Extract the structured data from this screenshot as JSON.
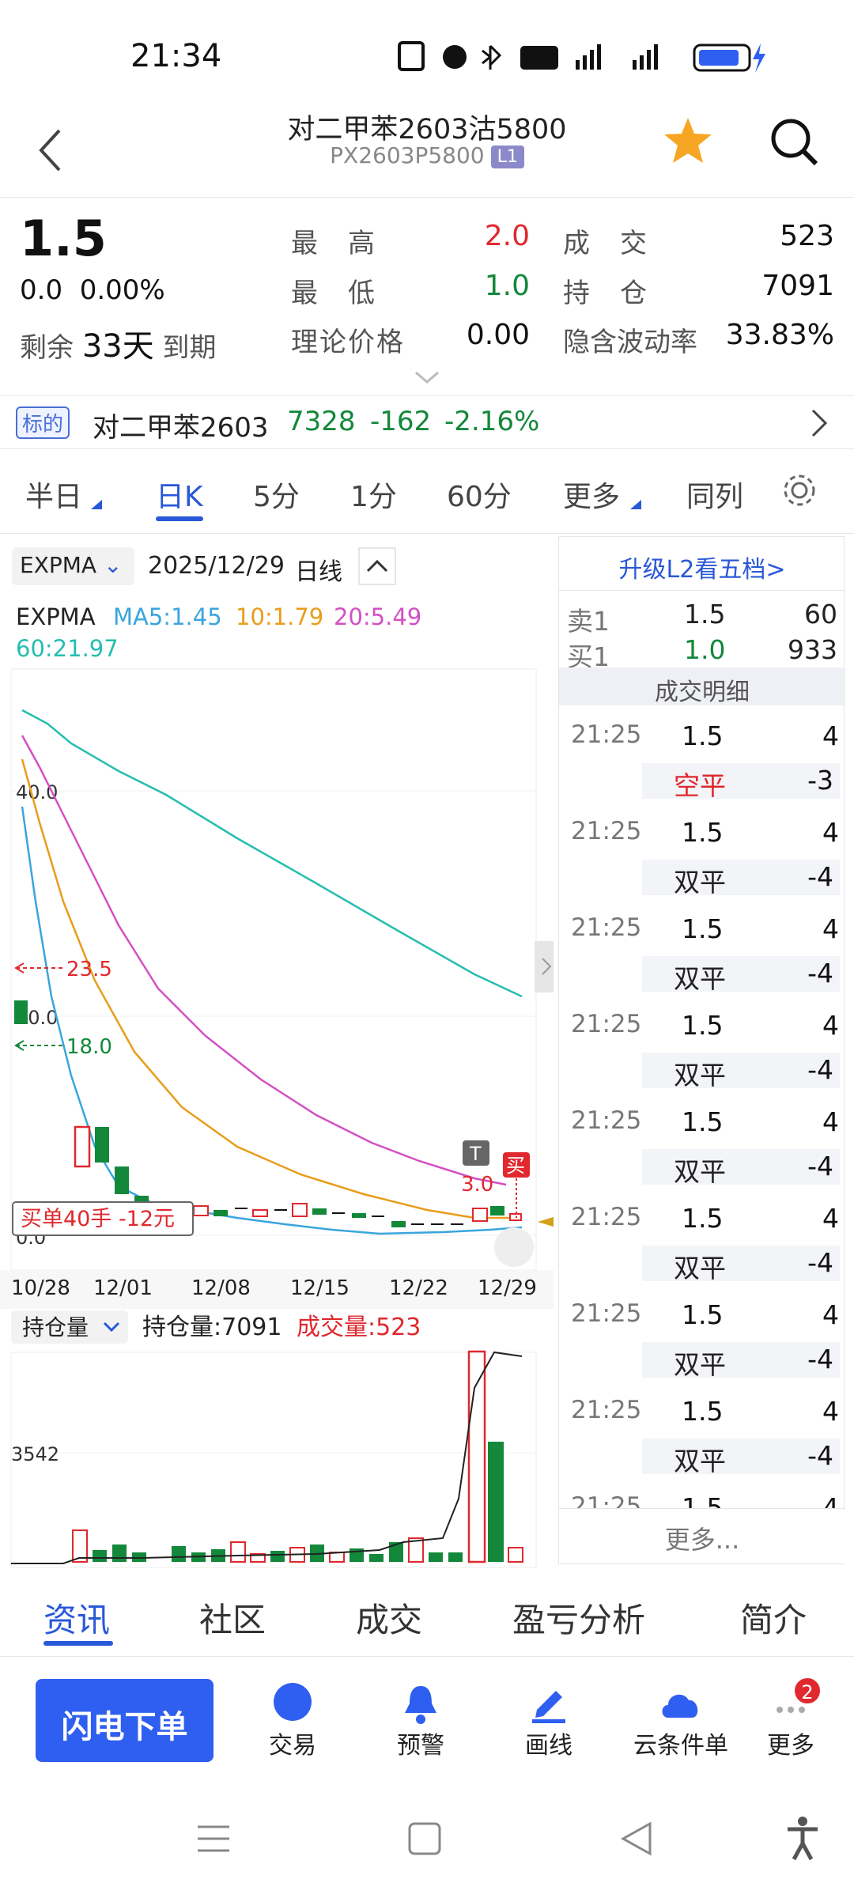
{
  "status": {
    "time": "21:34"
  },
  "nav": {
    "title": "对二甲苯2603沽5800",
    "code": "PX2603P5800",
    "badge": "L1"
  },
  "quote": {
    "price": "1.5",
    "change": "0.0",
    "change_pct": "0.00%",
    "remaining_prefix": "剩余",
    "remaining_days": "33天",
    "remaining_suffix": "到期",
    "high_label": "最　高",
    "high": "2.0",
    "low_label": "最　低",
    "low": "1.0",
    "theo_label": "理论价格",
    "theo": "0.00",
    "volume_label": "成　交",
    "volume": "523",
    "oi_label": "持　仓",
    "oi": "7091",
    "iv_label": "隐含波动率",
    "iv": "33.83%"
  },
  "underlying": {
    "tag": "标的",
    "name": "对二甲苯2603",
    "price": "7328",
    "change": "-162",
    "change_pct": "-2.16%"
  },
  "period_tabs": [
    "半日",
    "日K",
    "5分",
    "1分",
    "60分",
    "更多",
    "同列"
  ],
  "chart": {
    "indicator": "EXPMA",
    "date": "2025/12/29",
    "period": "日线",
    "ma_label": "EXPMA",
    "ma5": "MA5:1.45",
    "ma10": "10:1.79",
    "ma20": "20:5.49",
    "ma60": "60:21.97",
    "y_labels": [
      "40.0",
      "20.0",
      "0.0"
    ],
    "marker_high": "23.5",
    "marker_low": "18.0",
    "t_label": "T",
    "t_value": "3.0",
    "buy_label": "买",
    "order_note": "买单40手 -12元",
    "x_labels": [
      "10/28",
      "12/01",
      "12/08",
      "12/15",
      "12/22",
      "12/29"
    ],
    "colors": {
      "ma5": "#3aa5dd",
      "ma10": "#e89d1b",
      "ma20": "#d44fc3",
      "ma60": "#26bdb0"
    }
  },
  "vol": {
    "selector": "持仓量",
    "oi_text": "持仓量:7091",
    "vol_text": "成交量:523",
    "y_label": "3542"
  },
  "book": {
    "upgrade": "升级L2看五档>",
    "sell_label": "卖1",
    "sell_price": "1.5",
    "sell_qty": "60",
    "buy_label": "买1",
    "buy_price": "1.0",
    "buy_qty": "933",
    "detail_title": "成交明细",
    "more": "更多..."
  },
  "trades": [
    {
      "time": "21:25",
      "price": "1.5",
      "qty": "4",
      "kind": "空平",
      "delta": "-3"
    },
    {
      "time": "21:25",
      "price": "1.5",
      "qty": "4",
      "kind": "双平",
      "delta": "-4"
    },
    {
      "time": "21:25",
      "price": "1.5",
      "qty": "4",
      "kind": "双平",
      "delta": "-4"
    },
    {
      "time": "21:25",
      "price": "1.5",
      "qty": "4",
      "kind": "双平",
      "delta": "-4"
    },
    {
      "time": "21:25",
      "price": "1.5",
      "qty": "4",
      "kind": "双平",
      "delta": "-4"
    },
    {
      "time": "21:25",
      "price": "1.5",
      "qty": "4",
      "kind": "双平",
      "delta": "-4"
    },
    {
      "time": "21:25",
      "price": "1.5",
      "qty": "4",
      "kind": "双平",
      "delta": "-4"
    },
    {
      "time": "21:25",
      "price": "1.5",
      "qty": "4",
      "kind": "双平",
      "delta": "-4"
    },
    {
      "time": "21:25",
      "price": "1.5",
      "qty": "4",
      "kind": "",
      "delta": ""
    }
  ],
  "bottom_tabs": [
    "资讯",
    "社区",
    "成交",
    "盈亏分析",
    "简介"
  ],
  "actions": {
    "flash": "闪电下单",
    "items": [
      "交易",
      "预警",
      "画线",
      "云条件单",
      "更多"
    ],
    "more_badge": "2"
  }
}
